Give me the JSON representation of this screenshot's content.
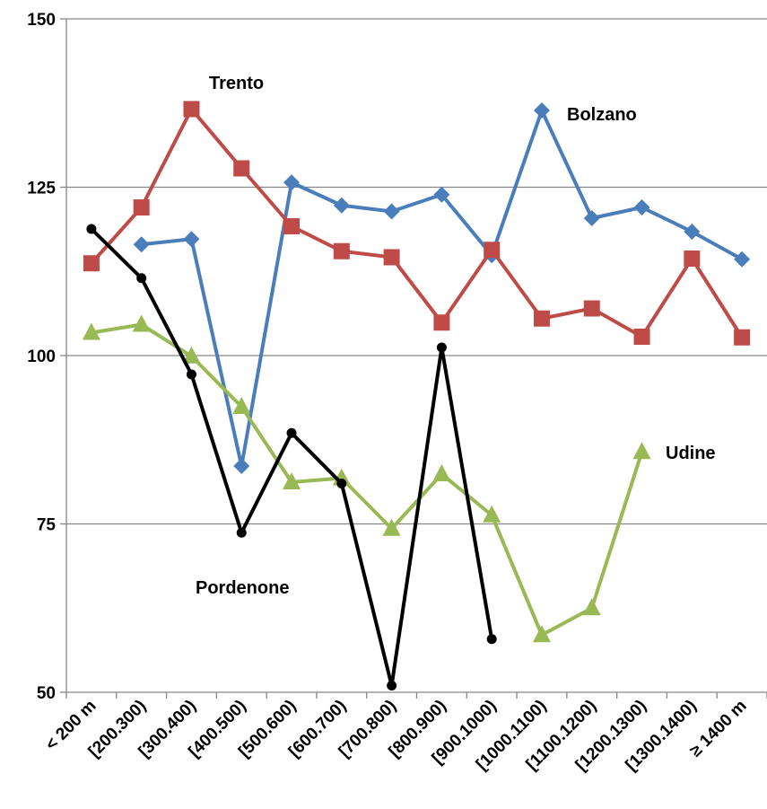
{
  "chart_data": {
    "type": "line",
    "title": "",
    "xlabel": "",
    "ylabel": "",
    "ylim": [
      50,
      150
    ],
    "yticks": [
      50,
      75,
      100,
      125,
      150
    ],
    "grid": "horizontal",
    "legend": "none (labels placed next to series)",
    "categories": [
      "< 200 m",
      "[200.300)",
      "[300.400)",
      "[400.500)",
      "[500.600)",
      "[600.700)",
      "[700.800)",
      "[800.900)",
      "[900.1000)",
      "[1000.1100)",
      "[1100.1200)",
      "[1200.1300)",
      "[1300.1400)",
      "≥ 1400 m"
    ],
    "series": [
      {
        "name": "Bolzano",
        "color": "#4a7ebb",
        "marker": "diamond",
        "values": [
          null,
          116.5,
          117.3,
          83.6,
          125.7,
          122.3,
          121.4,
          123.9,
          114.9,
          136.4,
          120.4,
          122.0,
          118.4,
          114.3
        ]
      },
      {
        "name": "Trento",
        "color": "#be4b48",
        "marker": "square",
        "values": [
          113.7,
          122.0,
          136.6,
          127.8,
          119.2,
          115.5,
          114.6,
          104.9,
          115.7,
          105.5,
          107.0,
          102.8,
          114.4,
          102.7
        ]
      },
      {
        "name": "Udine",
        "color": "#98b954",
        "marker": "triangle",
        "values": [
          103.4,
          104.6,
          99.9,
          92.4,
          81.2,
          81.8,
          74.3,
          82.4,
          76.3,
          58.5,
          62.5,
          85.7,
          null,
          null
        ]
      },
      {
        "name": "Pordenone",
        "color": "#000000",
        "marker": "circle",
        "values": [
          118.8,
          111.5,
          97.2,
          73.7,
          88.5,
          81.0,
          51.0,
          101.2,
          57.9,
          null,
          null,
          null,
          null,
          null
        ]
      }
    ]
  }
}
